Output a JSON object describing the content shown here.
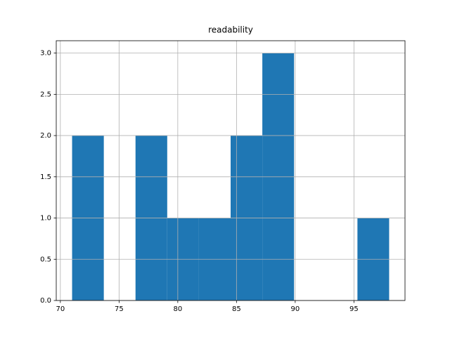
{
  "chart_data": {
    "type": "histogram",
    "title": "readability",
    "bins": [
      71,
      73.7,
      76.4,
      79.1,
      81.8,
      84.5,
      87.2,
      89.9,
      92.6,
      95.3,
      98
    ],
    "counts": [
      2,
      0,
      2,
      1,
      1,
      2,
      3,
      0,
      0,
      1
    ],
    "color": "#1f77b4",
    "xlim": [
      69.65,
      99.35
    ],
    "xticks": [
      70,
      75,
      80,
      85,
      90,
      95
    ],
    "ylim": [
      0,
      3.15
    ],
    "yticks": [
      {
        "value": 0,
        "label": "0.0"
      },
      {
        "value": 0.5,
        "label": "0.5"
      },
      {
        "value": 1,
        "label": "1.0"
      },
      {
        "value": 1.5,
        "label": "1.5"
      },
      {
        "value": 2,
        "label": "2.0"
      },
      {
        "value": 2.5,
        "label": "2.5"
      },
      {
        "value": 3,
        "label": "3.0"
      }
    ],
    "grid": true
  }
}
